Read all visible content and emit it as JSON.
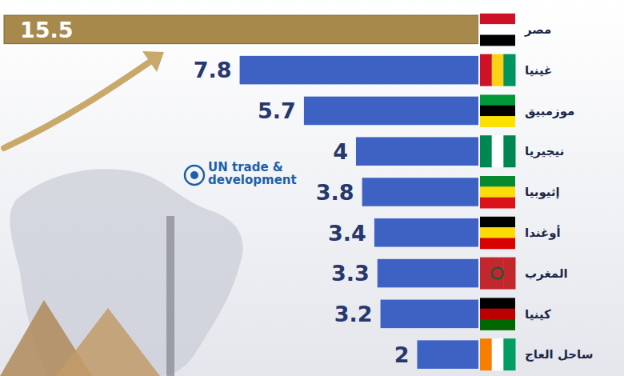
{
  "chart_data": {
    "type": "bar",
    "orientation": "horizontal",
    "categories": [
      "مصر",
      "غينيا",
      "موزمبيق",
      "نيجيريا",
      "إثيوبيا",
      "أوغندا",
      "المغرب",
      "كينيا",
      "ساحل العاج"
    ],
    "values": [
      15.5,
      7.8,
      5.7,
      4,
      3.8,
      3.4,
      3.3,
      3.2,
      2
    ],
    "colors": [
      "#a8894c",
      "#3d62c4",
      "#3d62c4",
      "#3d62c4",
      "#3d62c4",
      "#3d62c4",
      "#3d62c4",
      "#3d62c4",
      "#3d62c4"
    ],
    "data_labels": true,
    "tick_labels": false,
    "annotations": [
      "UN trade & development"
    ]
  }
}
